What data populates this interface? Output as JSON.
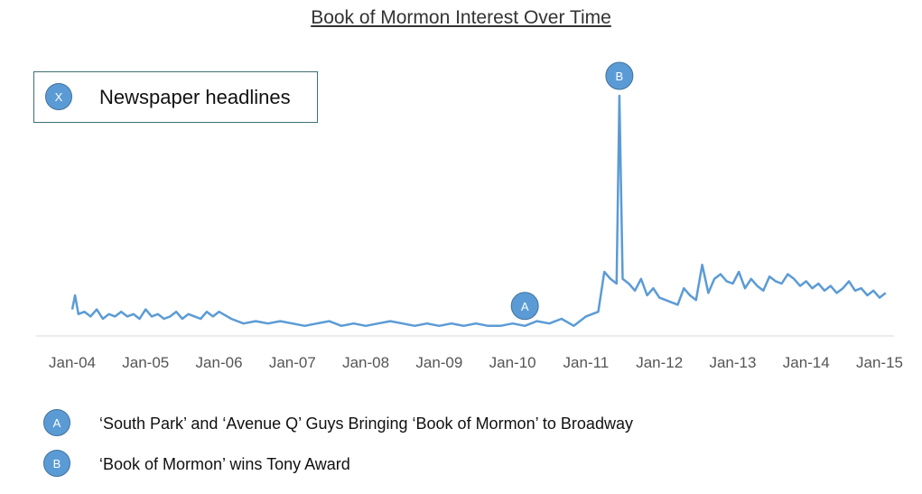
{
  "chart_data": {
    "type": "line",
    "title": "Book of Mormon Interest Over Time",
    "xlabel": "",
    "ylabel": "",
    "grid": false,
    "xlim": [
      "2004-01",
      "2015-01"
    ],
    "ylim": [
      0,
      100
    ],
    "x_ticks": [
      "Jan-04",
      "Jan-05",
      "Jan-06",
      "Jan-07",
      "Jan-08",
      "Jan-09",
      "Jan-10",
      "Jan-11",
      "Jan-12",
      "Jan-13",
      "Jan-14",
      "Jan-15"
    ],
    "series": [
      {
        "color": "#5b9bd5",
        "x": [
          "2004-01",
          "2004-01-15",
          "2004-02",
          "2004-03",
          "2004-04",
          "2004-05",
          "2004-06",
          "2004-07",
          "2004-08",
          "2004-09",
          "2004-10",
          "2004-11",
          "2004-12",
          "2005-01",
          "2005-02",
          "2005-03",
          "2005-04",
          "2005-05",
          "2005-06",
          "2005-07",
          "2005-08",
          "2005-09",
          "2005-10",
          "2005-11",
          "2005-12",
          "2006-01",
          "2006-03",
          "2006-05",
          "2006-07",
          "2006-09",
          "2006-11",
          "2007-01",
          "2007-03",
          "2007-05",
          "2007-07",
          "2007-09",
          "2007-11",
          "2008-01",
          "2008-03",
          "2008-05",
          "2008-07",
          "2008-09",
          "2008-11",
          "2009-01",
          "2009-03",
          "2009-05",
          "2009-07",
          "2009-09",
          "2009-11",
          "2010-01",
          "2010-03",
          "2010-05",
          "2010-07",
          "2010-09",
          "2010-11",
          "2011-01",
          "2011-02",
          "2011-03",
          "2011-04",
          "2011-05",
          "2011-06",
          "2011-06-15",
          "2011-07",
          "2011-08",
          "2011-09",
          "2011-10",
          "2011-11",
          "2011-12",
          "2012-01",
          "2012-02",
          "2012-03",
          "2012-04",
          "2012-05",
          "2012-06",
          "2012-07",
          "2012-08",
          "2012-09",
          "2012-10",
          "2012-11",
          "2012-12",
          "2013-01",
          "2013-02",
          "2013-03",
          "2013-04",
          "2013-05",
          "2013-06",
          "2013-07",
          "2013-08",
          "2013-09",
          "2013-10",
          "2013-11",
          "2013-12",
          "2014-01",
          "2014-02",
          "2014-03",
          "2014-04",
          "2014-05",
          "2014-06",
          "2014-07",
          "2014-08",
          "2014-09",
          "2014-10",
          "2014-11",
          "2014-12",
          "2015-01",
          "2015-02"
        ],
        "values": [
          9,
          15,
          7,
          8,
          6,
          9,
          5,
          7,
          6,
          8,
          6,
          7,
          5,
          9,
          6,
          7,
          5,
          6,
          8,
          5,
          7,
          6,
          5,
          8,
          6,
          8,
          5,
          3,
          4,
          3,
          4,
          3,
          2,
          3,
          4,
          2,
          3,
          2,
          3,
          4,
          3,
          2,
          3,
          2,
          3,
          2,
          3,
          2,
          2,
          3,
          2,
          4,
          3,
          5,
          2,
          6,
          7,
          8,
          25,
          22,
          20,
          100,
          22,
          20,
          17,
          22,
          15,
          18,
          14,
          13,
          12,
          11,
          18,
          15,
          13,
          28,
          16,
          22,
          24,
          21,
          20,
          25,
          18,
          22,
          19,
          17,
          23,
          21,
          20,
          24,
          22,
          19,
          21,
          18,
          20,
          17,
          19,
          16,
          18,
          21,
          17,
          18,
          15,
          17,
          14,
          16
        ]
      }
    ],
    "annotations": [
      {
        "label": "A",
        "x": "2010-03",
        "y": 2
      },
      {
        "label": "B",
        "x": "2011-06-15",
        "y": 100
      }
    ]
  },
  "legend": {
    "marker": "X",
    "text": "Newspaper headlines"
  },
  "notes": [
    {
      "marker": "A",
      "text": "‘South Park’ and ‘Avenue Q’ Guys Bringing ‘Book of Mormon’ to Broadway"
    },
    {
      "marker": "B",
      "text": "‘Book of Mormon’ wins Tony Award"
    }
  ]
}
